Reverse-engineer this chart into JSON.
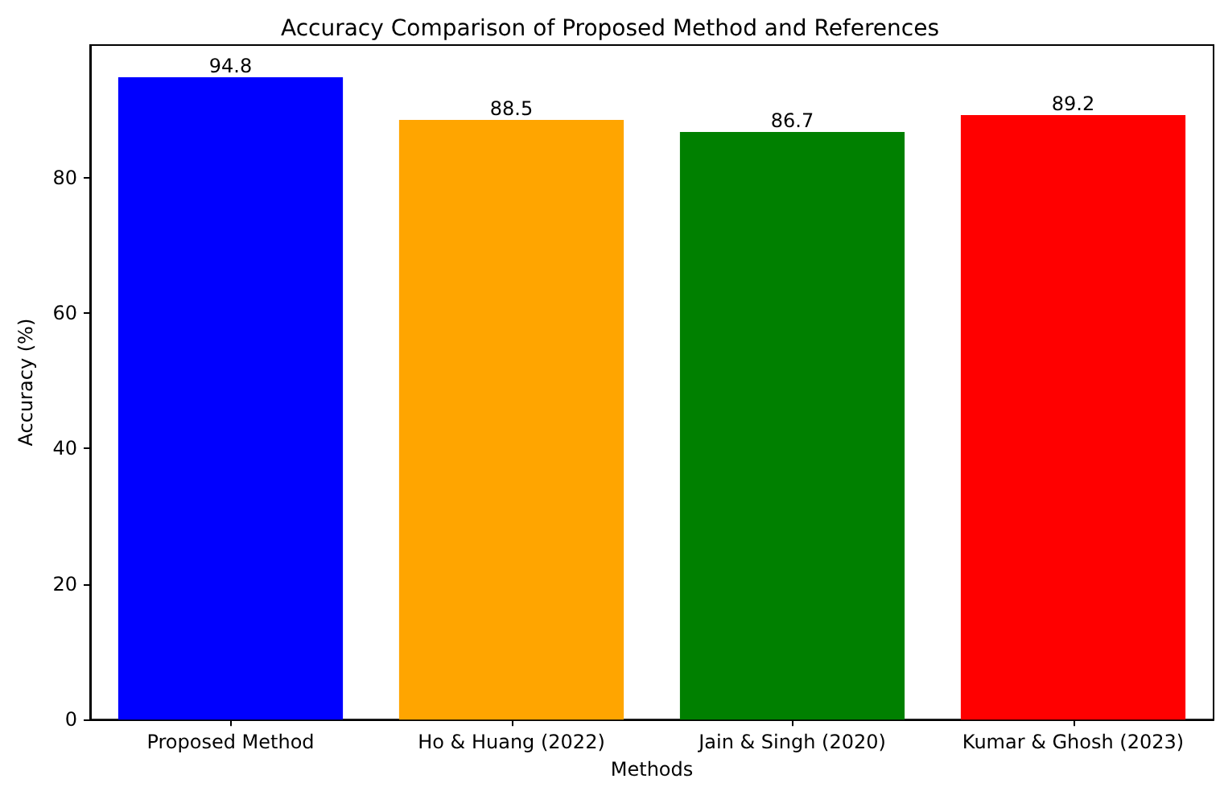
{
  "chart_data": {
    "type": "bar",
    "title": "Accuracy Comparison of Proposed Method and References",
    "xlabel": "Methods",
    "ylabel": "Accuracy (%)",
    "categories": [
      "Proposed Method",
      "Ho & Huang (2022)",
      "Jain & Singh (2020)",
      "Kumar & Ghosh (2023)"
    ],
    "values": [
      94.8,
      88.5,
      86.7,
      89.2
    ],
    "colors": [
      "#0000ff",
      "#ffa500",
      "#008000",
      "#ff0000"
    ],
    "ylim": [
      0,
      99.54
    ],
    "yticks": [
      0,
      20,
      40,
      60,
      80
    ],
    "grid": false,
    "data_labels": true
  }
}
